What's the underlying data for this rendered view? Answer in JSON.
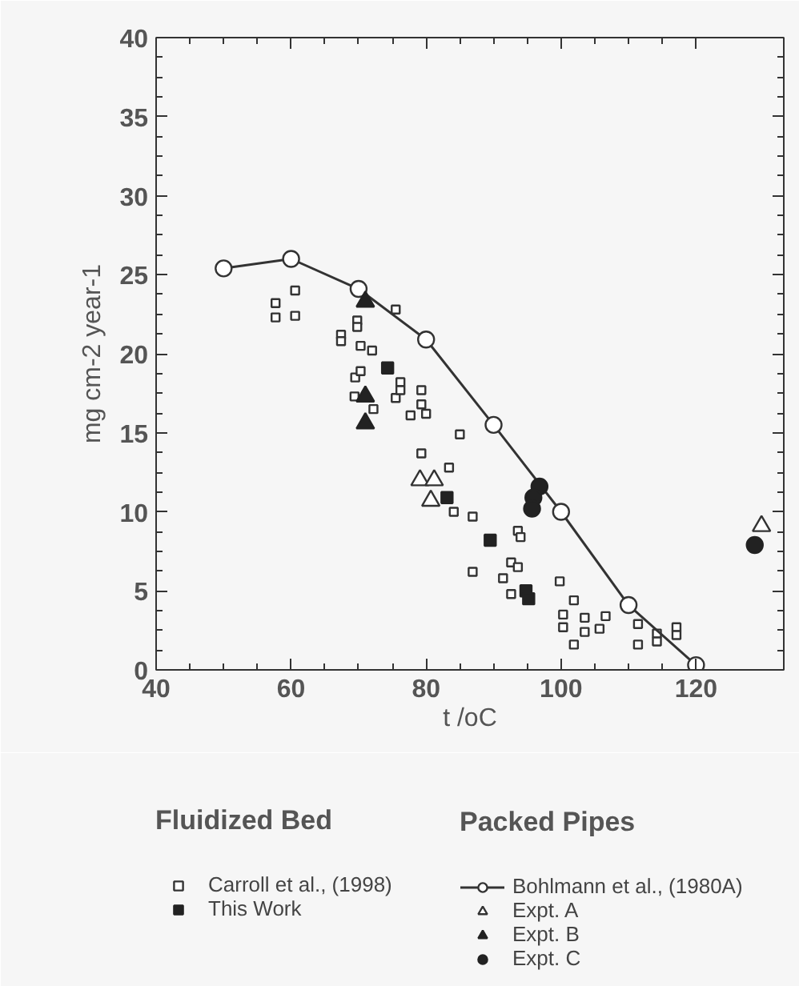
{
  "chart_data": {
    "type": "scatter",
    "xlabel": "t /oC",
    "ylabel": "mg cm-2 year-1",
    "xlim": [
      40,
      133
    ],
    "ylim": [
      0,
      40
    ],
    "xticks": [
      40,
      60,
      80,
      100,
      120
    ],
    "yticks": [
      0,
      5,
      10,
      15,
      20,
      25,
      30,
      35,
      40
    ],
    "legend": "bottom",
    "legend_title": [
      "Fluidized Bed",
      "Packed Pipes"
    ],
    "grid": false,
    "series": [
      {
        "name": "Carroll et al., (1998)",
        "marker": "square",
        "color": "#ffffff",
        "x": [
          57.7,
          57.7,
          60.6,
          60.6,
          67.4,
          67.4,
          69.8,
          69.8,
          70.3,
          72,
          75.5,
          69.5,
          70.3,
          69.4,
          72.2,
          75.5,
          76.2,
          76.2,
          79.3,
          79.3,
          77.7,
          80,
          79.3,
          85,
          83.4,
          84.1,
          86.9,
          93.6,
          94,
          86.9,
          92.6,
          93.6,
          91.4,
          92.6,
          99.8,
          101.9,
          100.3,
          100.3,
          103.5,
          103.5,
          101.9,
          105.7,
          106.6,
          111.4,
          111.4,
          114.2,
          114.2,
          117.1,
          117.1
        ],
        "values": [
          23.2,
          22.3,
          24.0,
          22.4,
          21.2,
          20.8,
          22.1,
          21.7,
          20.5,
          20.2,
          22.8,
          18.5,
          18.9,
          17.3,
          16.5,
          17.2,
          18.2,
          17.7,
          17.7,
          16.8,
          16.1,
          16.2,
          13.7,
          14.9,
          12.8,
          10.0,
          9.7,
          8.8,
          8.4,
          6.2,
          6.8,
          6.5,
          5.8,
          4.8,
          5.6,
          4.4,
          3.5,
          2.7,
          3.3,
          2.4,
          1.6,
          2.6,
          3.4,
          2.9,
          1.6,
          2.3,
          1.8,
          2.7,
          2.2
        ]
      },
      {
        "name": "This Work",
        "marker": "square",
        "color": "#222222",
        "x": [
          74.3,
          83.1,
          89.5,
          94.8,
          95.2
        ],
        "values": [
          19.1,
          10.9,
          8.2,
          5.0,
          4.5
        ]
      },
      {
        "name": "Bohlmann et al., (1980A)",
        "type": "line",
        "marker": "circle",
        "color": "#333333",
        "x": [
          50,
          60,
          70,
          80,
          90,
          100,
          110,
          120
        ],
        "values": [
          25.4,
          26.0,
          24.1,
          20.9,
          15.5,
          10.0,
          4.1,
          0.3
        ]
      },
      {
        "name": "Expt. A",
        "marker": "triangle",
        "color": "#ffffff",
        "x": [
          79.1,
          81.2,
          80.7,
          129.7
        ],
        "values": [
          12.0,
          12.0,
          10.7,
          9.1
        ]
      },
      {
        "name": "Expt. B",
        "marker": "triangle",
        "color": "#222222",
        "x": [
          71,
          71,
          71
        ],
        "values": [
          23.3,
          17.3,
          15.6
        ]
      },
      {
        "name": "Expt. C",
        "marker": "circle",
        "color": "#222222",
        "x": [
          96.8,
          95.9,
          95.7,
          128.7
        ],
        "values": [
          11.6,
          10.9,
          10.2,
          7.9
        ]
      }
    ]
  }
}
